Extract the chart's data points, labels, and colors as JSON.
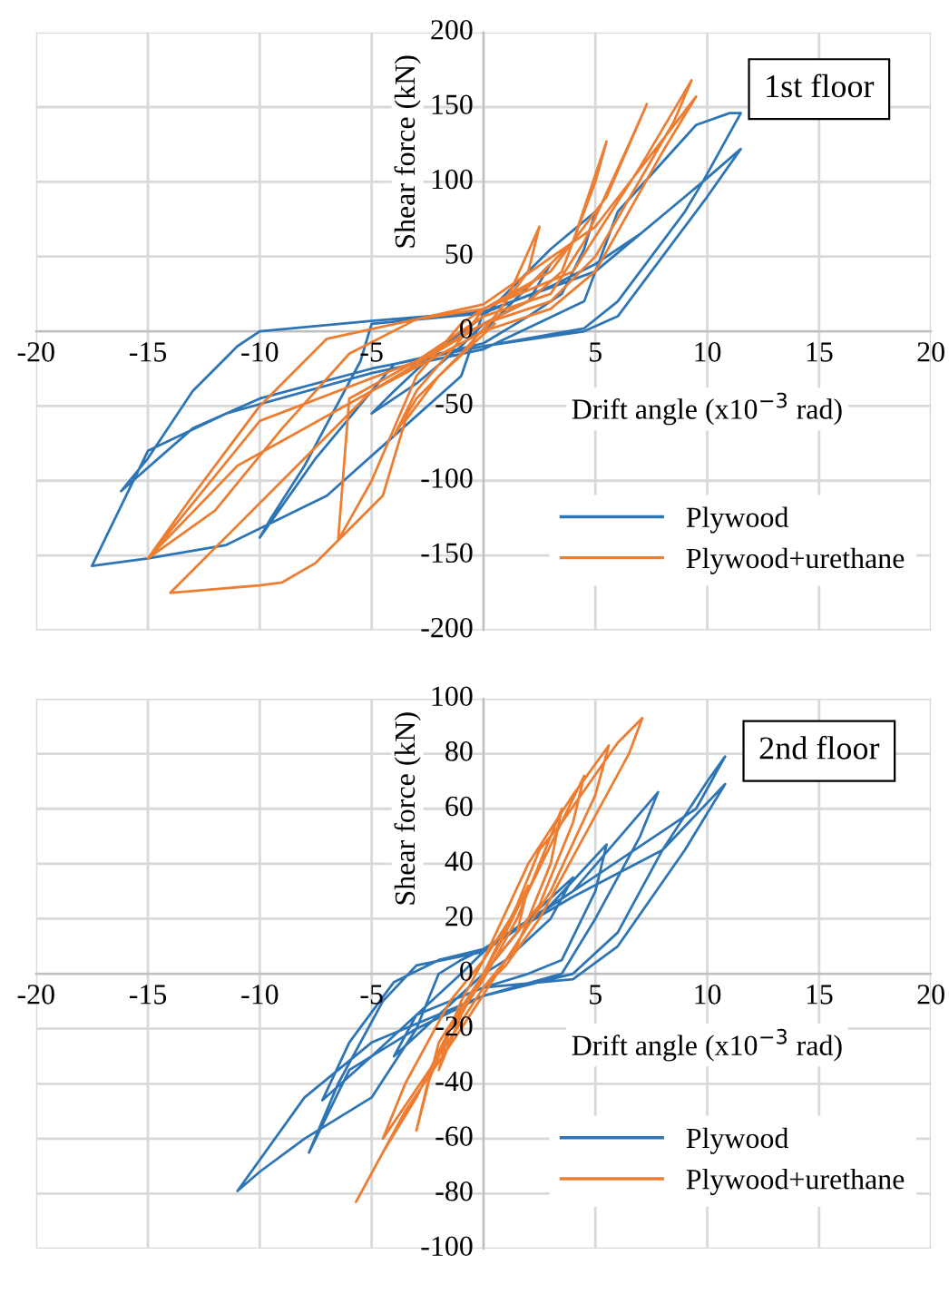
{
  "chart_data": [
    {
      "type": "line",
      "title": "1st floor",
      "xlabel": "Drift angle (x10$^{−3}$ rad)",
      "ylabel": "Shear force (kN)",
      "xlim": [
        -20,
        20
      ],
      "xticks": [
        -20,
        -15,
        -10,
        -5,
        {
          "value": 0,
          "label": null
        },
        5,
        10,
        15,
        20
      ],
      "ylim": [
        -200,
        200
      ],
      "yticks": [
        -200,
        -150,
        -100,
        -50,
        0,
        50,
        100,
        150,
        200
      ],
      "grid": true,
      "legend": "bottom right",
      "marker": "none",
      "line_style": "solid",
      "series": [
        {
          "name": "Plywood",
          "color": "#2e75b6",
          "x": [
            0,
            2,
            3,
            2,
            0,
            -1,
            -3,
            -5,
            -4,
            -2,
            0,
            3,
            5,
            4.5,
            3.5,
            2,
            0,
            -4,
            -7.5,
            -10,
            -9.5,
            -8,
            -5.5,
            -5,
            0,
            3,
            5,
            7,
            9.8,
            9,
            6,
            4.5,
            0,
            -5,
            -10,
            -13,
            -16.2,
            -15,
            -13,
            -11,
            -10,
            -5,
            0,
            5,
            9.8,
            11.5,
            11,
            9.5,
            6,
            4.5,
            0,
            -5,
            -11.5,
            -15,
            -17.5,
            -15,
            -11.5,
            -7,
            -4,
            -1,
            0,
            5,
            9.8,
            11.5,
            10,
            6,
            4.5,
            0
          ],
          "values": [
            0,
            30,
            45,
            20,
            5,
            -10,
            -35,
            -55,
            -40,
            -12,
            10,
            55,
            80,
            55,
            25,
            10,
            -8,
            -22,
            -85,
            -138,
            -125,
            -90,
            -20,
            5,
            12,
            30,
            45,
            65,
            100,
            80,
            20,
            2,
            -10,
            -25,
            -45,
            -65,
            -107,
            -85,
            -40,
            -10,
            0,
            7,
            13,
            40,
            100,
            146,
            146,
            138,
            80,
            20,
            -12,
            -28,
            -55,
            -80,
            -157,
            -152,
            -143,
            -110,
            -70,
            -30,
            13,
            40,
            100,
            122,
            90,
            10,
            0,
            -10
          ]
        },
        {
          "name": "Plywood+urethane",
          "color": "#ed7d31",
          "x": [
            0,
            1,
            2.5,
            2,
            0.5,
            -1,
            -3,
            -4,
            -3,
            -1,
            0,
            2,
            4,
            5.5,
            5,
            3.5,
            2,
            0,
            -3,
            -6,
            -6.5,
            -5,
            -3,
            -1,
            0,
            3,
            5.5,
            7.3,
            6.5,
            4.5,
            3,
            0,
            -3,
            -10,
            -15,
            -13,
            -10,
            -7,
            -3,
            0,
            4,
            7,
            9.3,
            8.5,
            5,
            3,
            0,
            -5,
            -11,
            -15,
            -12,
            -9,
            -6,
            -3,
            0,
            5,
            9.5,
            8,
            5,
            3,
            0,
            -5,
            -9,
            -14,
            -10,
            -9,
            -7.5,
            -4.5,
            -3.5,
            -2,
            0.5
          ],
          "values": [
            0,
            20,
            70,
            40,
            10,
            -15,
            -45,
            -70,
            -40,
            -5,
            15,
            30,
            60,
            127,
            100,
            40,
            20,
            5,
            -20,
            -45,
            -140,
            -100,
            -30,
            5,
            15,
            40,
            90,
            152,
            125,
            60,
            25,
            10,
            -20,
            -60,
            -152,
            -110,
            -50,
            -5,
            8,
            15,
            40,
            110,
            168,
            140,
            50,
            20,
            5,
            -40,
            -90,
            -152,
            -120,
            -65,
            -15,
            8,
            18,
            70,
            157,
            120,
            40,
            15,
            0,
            -40,
            -100,
            -175,
            -170,
            -168,
            -155,
            -110,
            -60,
            -30,
            5
          ]
        }
      ]
    },
    {
      "type": "line",
      "title": "2nd floor",
      "xlabel": "Drift angle (x10$^{−3}$ rad)",
      "ylabel": "Shear force (kN)",
      "xlim": [
        -20,
        20
      ],
      "xticks": [
        -20,
        -15,
        -10,
        -5,
        {
          "value": 0,
          "label": null
        },
        5,
        10,
        15,
        20
      ],
      "ylim": [
        -100,
        100
      ],
      "yticks": [
        -100,
        -80,
        -60,
        -40,
        -20,
        0,
        20,
        40,
        60,
        80,
        100
      ],
      "grid": true,
      "legend": "bottom right",
      "marker": "none",
      "line_style": "solid",
      "series": [
        {
          "name": "Plywood",
          "color": "#2e75b6",
          "x": [
            0,
            2,
            4,
            3,
            1,
            0,
            -2,
            -4,
            -3,
            -1,
            0,
            3,
            5.5,
            5,
            3.5,
            2,
            0,
            -3,
            -5,
            -7.2,
            -6,
            -4,
            -2,
            0,
            4,
            7.8,
            7,
            5,
            3.5,
            0,
            -3,
            -6,
            -7.8,
            -6.5,
            -4.5,
            -3,
            0,
            4,
            9.5,
            10.8,
            10,
            8,
            6,
            4,
            0,
            -5,
            -8,
            -11,
            -10,
            -8,
            -5,
            -3,
            -2,
            -1,
            0,
            4,
            8,
            10.8,
            9,
            6,
            4,
            0
          ],
          "values": [
            0,
            20,
            35,
            20,
            5,
            0,
            -15,
            -30,
            -15,
            0,
            8,
            25,
            47,
            30,
            5,
            0,
            -5,
            -15,
            -30,
            -46,
            -25,
            -3,
            5,
            9,
            30,
            66,
            50,
            20,
            0,
            -8,
            -20,
            -35,
            -65,
            -40,
            -10,
            3,
            8,
            30,
            60,
            79,
            70,
            45,
            15,
            0,
            -8,
            -25,
            -45,
            -79,
            -72,
            -60,
            -45,
            -20,
            0,
            5,
            9,
            28,
            45,
            69,
            45,
            10,
            -2,
            -5
          ]
        },
        {
          "name": "Plywood+urethane",
          "color": "#ed7d31",
          "x": [
            0,
            1,
            2,
            1.5,
            0,
            -1,
            -2,
            -1.5,
            0,
            1.5,
            3.5,
            3,
            1.5,
            0,
            -2,
            -4.5,
            -3.5,
            -1.5,
            0,
            2,
            4.5,
            4,
            2.5,
            0,
            -2,
            -3,
            -2.5,
            -1,
            0,
            2,
            4,
            5.6,
            5,
            3,
            1,
            -1,
            -3.5,
            -5.7,
            -4.5,
            -3,
            -1.5,
            0,
            1.5,
            2.5,
            3.5,
            6,
            7.1,
            6.5,
            4.5,
            2.5,
            1,
            0
          ],
          "values": [
            0,
            15,
            32,
            15,
            0,
            -15,
            -35,
            -20,
            -2,
            20,
            60,
            40,
            10,
            -5,
            -30,
            -60,
            -40,
            -10,
            5,
            30,
            72,
            55,
            25,
            0,
            -25,
            -57,
            -40,
            -10,
            5,
            40,
            65,
            83,
            65,
            30,
            5,
            -20,
            -50,
            -83,
            -65,
            -45,
            -20,
            0,
            25,
            45,
            55,
            84,
            93,
            80,
            50,
            20,
            3,
            -5
          ]
        }
      ]
    }
  ]
}
